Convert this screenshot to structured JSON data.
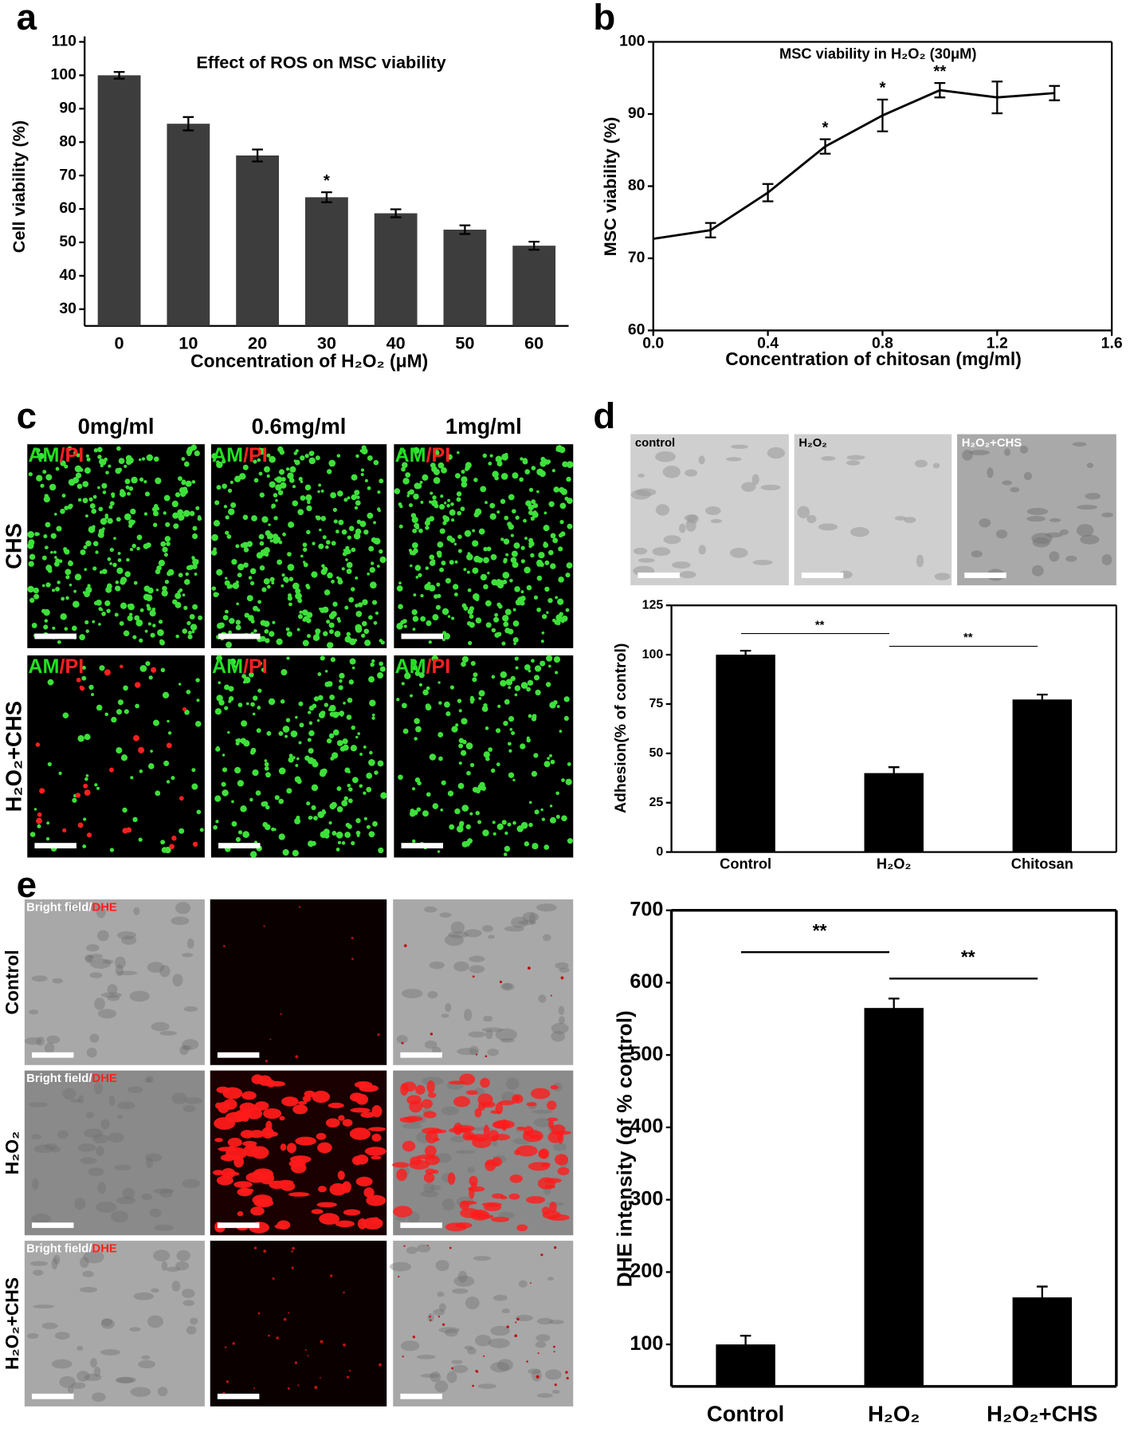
{
  "panel_labels": [
    "a",
    "b",
    "c",
    "d",
    "e"
  ],
  "figure_c": {
    "columns": [
      "0mg/ml",
      "0.6mg/ml",
      "1mg/ml"
    ],
    "rows": [
      "CHS",
      "H₂O₂+CHS"
    ],
    "stain": [
      "AM",
      "/PI"
    ]
  },
  "figure_d": {
    "images": [
      "control",
      "H₂O₂",
      "H₂O₂+CHS"
    ]
  },
  "figure_e": {
    "rows": [
      "Control",
      "H₂O₂",
      "H₂O₂+CHS"
    ],
    "stain": [
      "Bright field/",
      "DHE"
    ]
  },
  "chart_data": [
    {
      "type": "bar",
      "title": "Effect of ROS on MSC viability",
      "x_label": "Concentration of H₂O₂ (μM)",
      "y_label": "Cell viability (%)",
      "categories": [
        "0",
        "10",
        "20",
        "30",
        "40",
        "50",
        "60"
      ],
      "values": [
        100,
        85.5,
        76,
        63.5,
        58.7,
        53.8,
        49
      ],
      "errors": [
        1,
        2,
        1.8,
        1.5,
        1.2,
        1.3,
        1.2
      ],
      "color": "#3d3d3d",
      "ylim": [
        25,
        110
      ],
      "yticks": [
        30,
        40,
        50,
        60,
        70,
        80,
        90,
        100,
        110
      ],
      "annotations": [
        {
          "text": "*",
          "category": "30"
        }
      ]
    },
    {
      "type": "line",
      "title": "MSC viability in H₂O₂ (30μM)",
      "x_label": "Concentration of chitosan (mg/ml)",
      "y_label": "MSC viability (%)",
      "x": [
        0,
        0.2,
        0.4,
        0.6,
        0.8,
        1.0,
        1.2,
        1.4
      ],
      "values": [
        72.7,
        73.9,
        79.1,
        85.5,
        89.8,
        93.3,
        92.3,
        92.9
      ],
      "errors": [
        null,
        1,
        1.2,
        1,
        2.2,
        1,
        2.2,
        1
      ],
      "color": "#000000",
      "xlim": [
        0,
        1.6
      ],
      "xticks": [
        {
          "value": 0,
          "label": "0.0"
        },
        0.4,
        0.8,
        1.2,
        1.6
      ],
      "ylim": [
        60,
        100
      ],
      "yticks": [
        60,
        70,
        80,
        90,
        100
      ],
      "annotations": [
        {
          "text": "*",
          "x": 0.6
        },
        {
          "text": "*",
          "x": 0.8
        },
        {
          "text": "**",
          "x": 1.0
        }
      ]
    },
    {
      "type": "bar",
      "y_label": "Adhesion(% of control)",
      "categories": [
        "Control",
        "H₂O₂",
        "Chitosan"
      ],
      "values": [
        100,
        40,
        77.3
      ],
      "errors": [
        2,
        3,
        2.5
      ],
      "color": "#000000",
      "ylim": [
        0,
        125
      ],
      "yticks": [
        0,
        25,
        50,
        75,
        100,
        125
      ],
      "annotations": [
        {
          "text": "**",
          "between": [
            "Control",
            "H₂O₂"
          ]
        },
        {
          "text": "**",
          "between": [
            "H₂O₂",
            "Chitosan"
          ]
        }
      ]
    },
    {
      "type": "bar",
      "y_label": "DHE intensity (of % control)",
      "categories": [
        "Control",
        "H₂O₂",
        "H₂O₂+CHS"
      ],
      "values": [
        100,
        565,
        165
      ],
      "errors": [
        12,
        13,
        15
      ],
      "color": "#000000",
      "ylim": [
        42,
        700
      ],
      "yticks": [
        100,
        200,
        300,
        400,
        500,
        600,
        700
      ],
      "annotations": [
        {
          "text": "**",
          "between": [
            "Control",
            "H₂O₂"
          ]
        },
        {
          "text": "**",
          "between": [
            "H₂O₂",
            "H₂O₂+CHS"
          ]
        }
      ]
    }
  ]
}
